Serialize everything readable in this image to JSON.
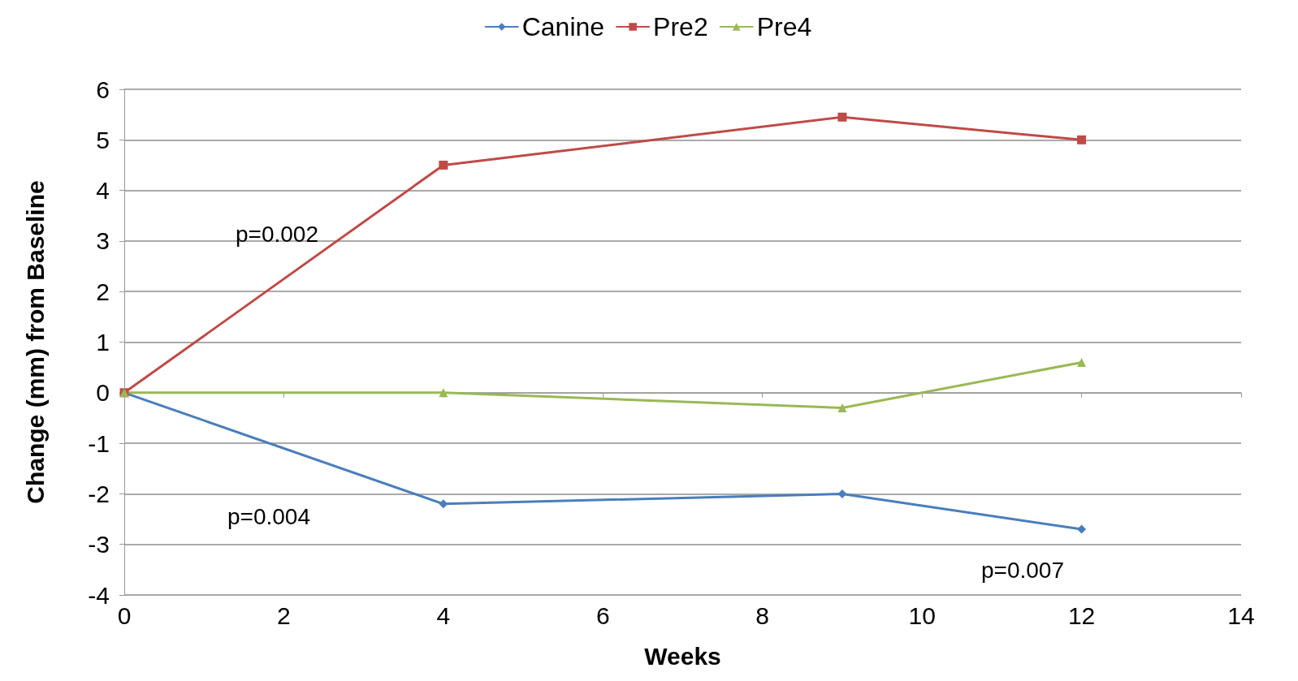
{
  "chart_data": {
    "type": "line",
    "xlabel": "Weeks",
    "ylabel": "Change (mm) from Baseline",
    "x": [
      0,
      4,
      9,
      12
    ],
    "series": [
      {
        "name": "Canine",
        "color": "#4a7ebb",
        "marker": "diamond",
        "values": [
          0,
          -2.2,
          -2.0,
          -2.7
        ]
      },
      {
        "name": "Pre2",
        "color": "#be4b48",
        "marker": "square",
        "values": [
          0,
          4.5,
          5.45,
          5.0
        ]
      },
      {
        "name": "Pre4",
        "color": "#98b954",
        "marker": "triangle",
        "values": [
          0,
          0,
          -0.3,
          0.6
        ]
      }
    ],
    "xlim": [
      0,
      14
    ],
    "xticks": [
      0,
      2,
      4,
      6,
      8,
      10,
      12,
      14
    ],
    "ylim": [
      -4,
      6
    ],
    "yticks": [
      -4,
      -3,
      -2,
      -1,
      0,
      1,
      2,
      3,
      4,
      5,
      6
    ],
    "grid": "y",
    "legend": "top",
    "annotations": [
      "p=0.002",
      "p=0.004",
      "p=0.007"
    ]
  }
}
